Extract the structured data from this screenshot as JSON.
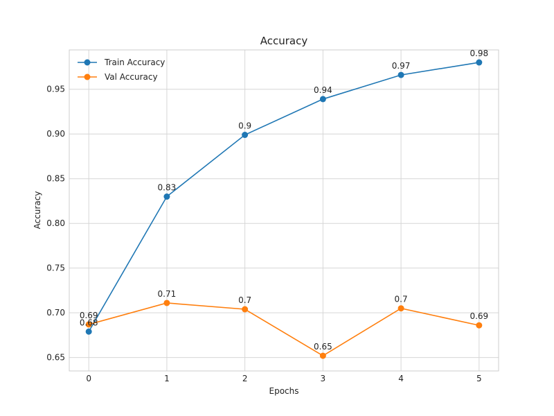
{
  "chart_data": {
    "type": "line",
    "title": "Accuracy",
    "xlabel": "Epochs",
    "ylabel": "Accuracy",
    "x": [
      0,
      1,
      2,
      3,
      4,
      5
    ],
    "xlim": [
      -0.25,
      5.25
    ],
    "ylim": [
      0.635,
      0.994
    ],
    "xticks": [
      0,
      1,
      2,
      3,
      4,
      5
    ],
    "yticks": [
      0.65,
      0.7,
      0.75,
      0.8,
      0.85,
      0.9,
      0.95
    ],
    "ytick_labels": [
      "0.65",
      "0.70",
      "0.75",
      "0.80",
      "0.85",
      "0.90",
      "0.95"
    ],
    "grid": true,
    "legend_position": "top-left",
    "series": [
      {
        "name": "Train Accuracy",
        "color": "#1f77b4",
        "values": [
          0.679,
          0.83,
          0.899,
          0.939,
          0.966,
          0.98
        ],
        "labels": [
          "0.68",
          "0.83",
          "0.9",
          "0.94",
          "0.97",
          "0.98"
        ]
      },
      {
        "name": "Val Accuracy",
        "color": "#ff7f0e",
        "values": [
          0.687,
          0.711,
          0.704,
          0.652,
          0.705,
          0.686
        ],
        "labels": [
          "0.69",
          "0.71",
          "0.7",
          "0.65",
          "0.7",
          "0.69"
        ]
      }
    ]
  }
}
